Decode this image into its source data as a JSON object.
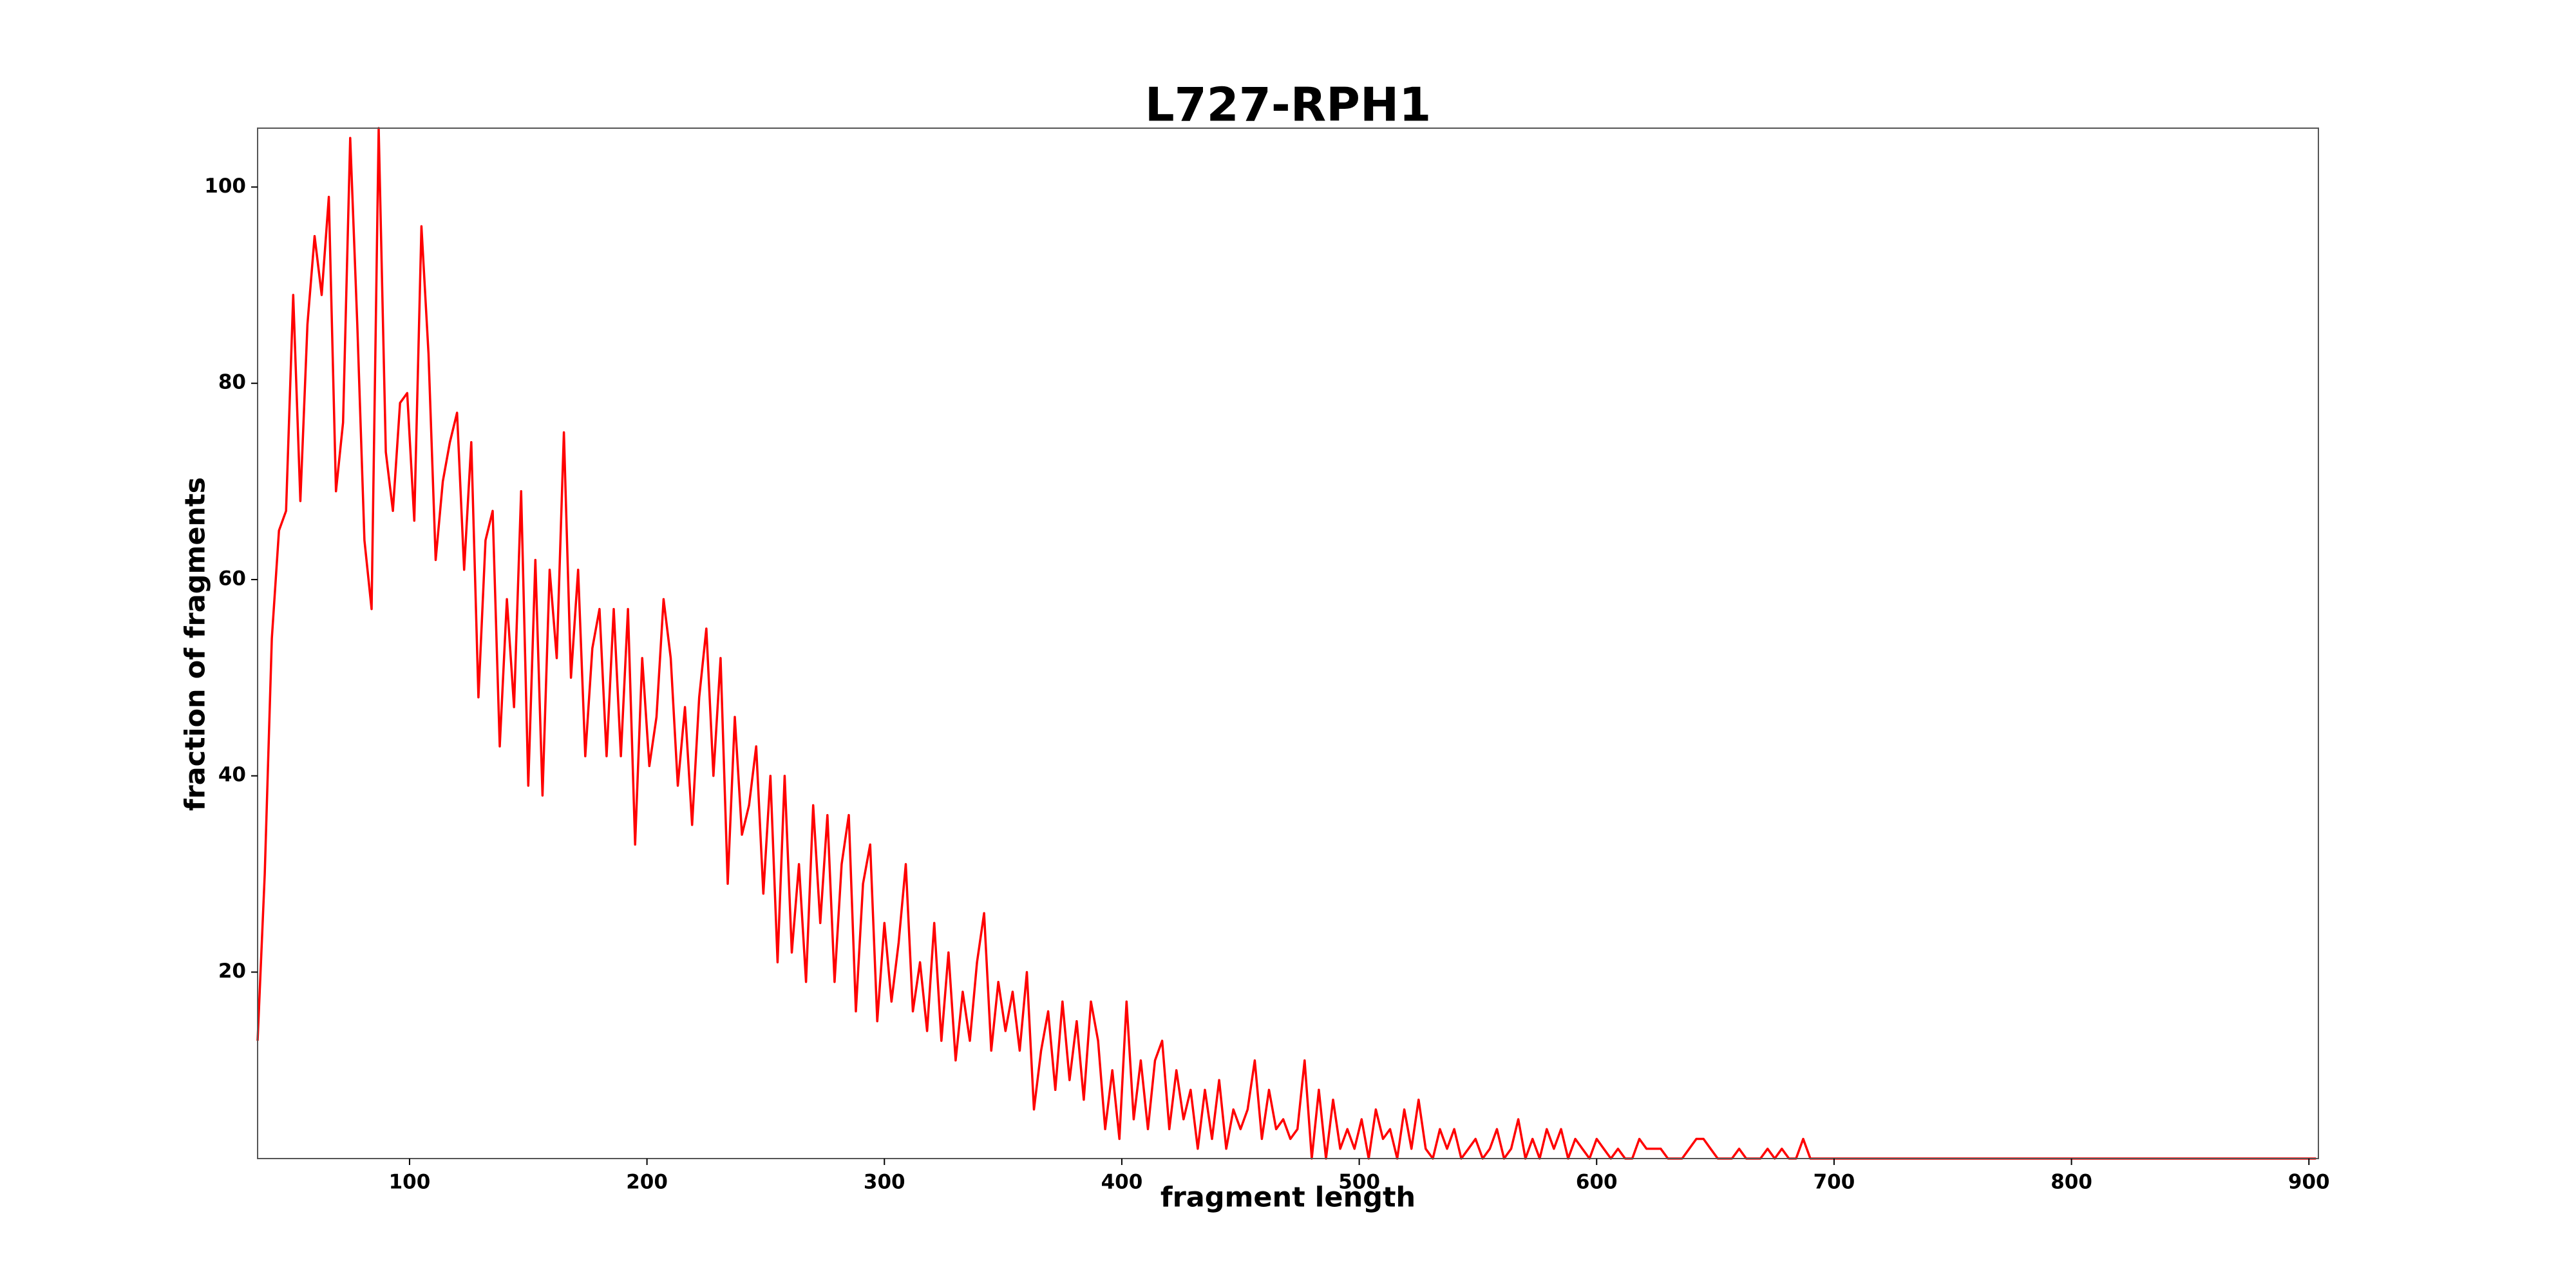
{
  "chart_data": {
    "type": "line",
    "title": "L727-RPH1",
    "x_label": "fragment length",
    "y_label": "fraction of fragments",
    "xlim": [
      36,
      904
    ],
    "ylim": [
      1,
      106
    ],
    "xticks": [
      100,
      200,
      300,
      400,
      500,
      600,
      700,
      800,
      900
    ],
    "yticks": [
      20,
      40,
      60,
      80,
      100
    ],
    "series": [
      {
        "color": "#ff0000",
        "x": [
          36,
          39,
          42,
          45,
          48,
          51,
          54,
          57,
          60,
          63,
          66,
          69,
          72,
          75,
          78,
          81,
          84,
          87,
          90,
          93,
          96,
          99,
          102,
          105,
          108,
          111,
          114,
          117,
          120,
          123,
          126,
          129,
          132,
          135,
          138,
          141,
          144,
          147,
          150,
          153,
          156,
          159,
          162,
          165,
          168,
          171,
          174,
          177,
          180,
          183,
          186,
          189,
          192,
          195,
          198,
          201,
          204,
          207,
          210,
          213,
          216,
          219,
          222,
          225,
          228,
          231,
          234,
          237,
          240,
          243,
          246,
          249,
          252,
          255,
          258,
          261,
          264,
          267,
          270,
          273,
          276,
          279,
          282,
          285,
          288,
          291,
          294,
          297,
          300,
          303,
          306,
          309,
          312,
          315,
          318,
          321,
          324,
          327,
          330,
          333,
          336,
          339,
          342,
          345,
          348,
          351,
          354,
          357,
          360,
          363,
          366,
          369,
          372,
          375,
          378,
          381,
          384,
          387,
          390,
          393,
          396,
          399,
          402,
          405,
          408,
          411,
          414,
          417,
          420,
          423,
          426,
          429,
          432,
          435,
          438,
          441,
          444,
          447,
          450,
          453,
          456,
          459,
          462,
          465,
          468,
          471,
          474,
          477,
          480,
          483,
          486,
          489,
          492,
          495,
          498,
          501,
          504,
          507,
          510,
          513,
          516,
          519,
          522,
          525,
          528,
          531,
          534,
          537,
          540,
          543,
          546,
          549,
          552,
          555,
          558,
          561,
          564,
          567,
          570,
          573,
          576,
          579,
          582,
          585,
          588,
          591,
          594,
          597,
          600,
          603,
          606,
          609,
          612,
          615,
          618,
          621,
          624,
          627,
          630,
          633,
          636,
          639,
          642,
          645,
          648,
          651,
          654,
          657,
          660,
          663,
          666,
          669,
          672,
          675,
          678,
          681,
          684,
          687,
          690,
          696,
          800,
          903
        ],
        "values": [
          13,
          30,
          54,
          65,
          67,
          89,
          68,
          86,
          95,
          89,
          99,
          69,
          76,
          105,
          86,
          64,
          57,
          106,
          73,
          67,
          78,
          79,
          66,
          96,
          83,
          62,
          70,
          74,
          77,
          61,
          74,
          48,
          64,
          67,
          43,
          58,
          47,
          69,
          39,
          62,
          38,
          61,
          52,
          75,
          50,
          61,
          42,
          53,
          57,
          42,
          57,
          42,
          57,
          33,
          52,
          41,
          46,
          58,
          52,
          39,
          47,
          35,
          48,
          55,
          40,
          52,
          29,
          46,
          34,
          37,
          43,
          28,
          40,
          21,
          40,
          22,
          31,
          19,
          37,
          25,
          36,
          19,
          31,
          36,
          16,
          29,
          33,
          15,
          25,
          17,
          23,
          31,
          16,
          21,
          14,
          25,
          13,
          22,
          11,
          18,
          13,
          21,
          26,
          12,
          19,
          14,
          18,
          12,
          20,
          6,
          12,
          16,
          8,
          17,
          9,
          15,
          7,
          17,
          13,
          4,
          10,
          3,
          17,
          5,
          11,
          4,
          11,
          13,
          4,
          10,
          5,
          8,
          2,
          8,
          3,
          9,
          2,
          6,
          4,
          6,
          11,
          3,
          8,
          4,
          5,
          3,
          4,
          11,
          1,
          8,
          1,
          7,
          2,
          4,
          2,
          5,
          1,
          6,
          3,
          4,
          1,
          6,
          2,
          7,
          2,
          1,
          4,
          2,
          4,
          1,
          2,
          3,
          1,
          2,
          4,
          1,
          2,
          5,
          1,
          3,
          1,
          4,
          2,
          4,
          1,
          3,
          2,
          1,
          3,
          2,
          1,
          2,
          1,
          1,
          3,
          2,
          2,
          2,
          1,
          1,
          1,
          2,
          3,
          3,
          2,
          1,
          1,
          1,
          2,
          1,
          1,
          1,
          2,
          1,
          2,
          1,
          1,
          3,
          1,
          1,
          1,
          1
        ]
      }
    ]
  }
}
